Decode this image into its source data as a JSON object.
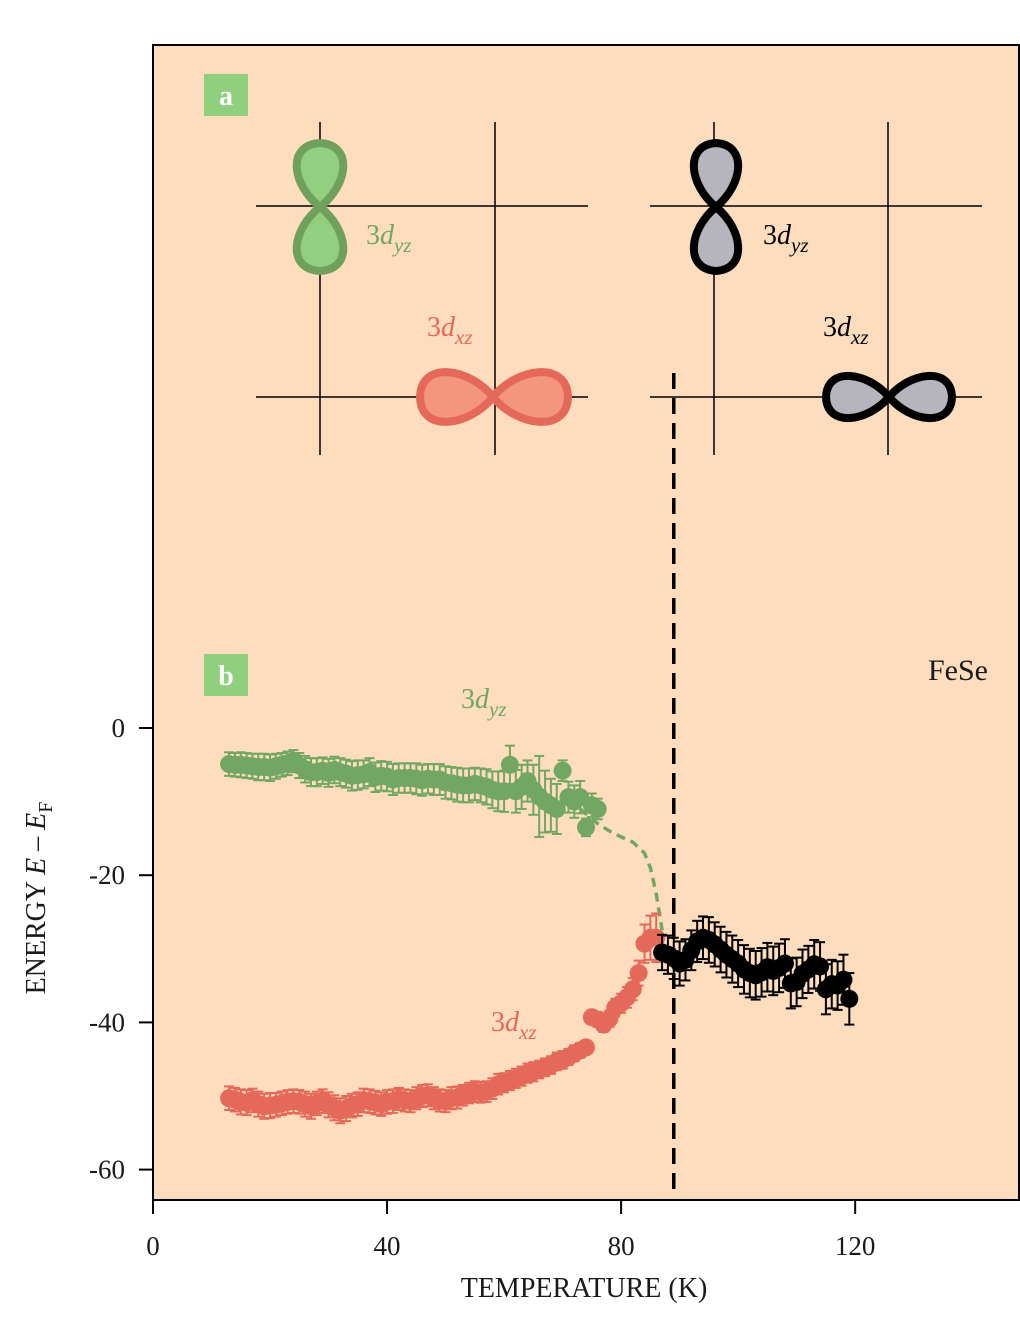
{
  "panel_a": {
    "label": "a",
    "label_color": "#8fcf7e",
    "left_diagram": {
      "yz_label": {
        "prefix": "3",
        "d": "d",
        "sub": "yz"
      },
      "xz_label": {
        "prefix": "3",
        "d": "d",
        "sub": "xz"
      },
      "yz_fill": "#93cf80",
      "yz_stroke": "#6fa05c",
      "xz_fill": "#f4967e",
      "xz_stroke": "#e4695a"
    },
    "right_diagram": {
      "yz_label": {
        "prefix": "3",
        "d": "d",
        "sub": "yz"
      },
      "xz_label": {
        "prefix": "3",
        "d": "d",
        "sub": "xz"
      },
      "fill": "#b6b5be",
      "stroke": "#000000"
    }
  },
  "panel_b": {
    "label": "b",
    "label_color": "#8fcf7e",
    "sample_label": "FeSe"
  },
  "colors": {
    "background": "#fdddbd",
    "green": "#72a763",
    "red": "#e5695b",
    "black": "#000000"
  },
  "chart_data": {
    "type": "scatter",
    "xlabel": "TEMPERATURE (K)",
    "ylabel": {
      "prefix": "ENERGY ",
      "e1": "E",
      "mid": " – ",
      "e2": "E",
      "sub": "F"
    },
    "xlim": [
      0,
      148
    ],
    "ylim": [
      -64,
      0
    ],
    "xticks": [
      0,
      40,
      80,
      120
    ],
    "yticks": [
      0,
      -20,
      -40,
      -60
    ],
    "tick_labels_x": [
      "0",
      "40",
      "80",
      "120"
    ],
    "tick_labels_y": [
      "0",
      "-20",
      "-40",
      "-60"
    ],
    "transition_temperature": 89,
    "series": [
      {
        "label": {
          "prefix": "3",
          "d": "d",
          "sub": "yz"
        },
        "color": "#72a763",
        "x": [
          13,
          14,
          15,
          16,
          17,
          18,
          19,
          20,
          21,
          22,
          23,
          24,
          25,
          26,
          27,
          28,
          29,
          30,
          31,
          32,
          33,
          34,
          35,
          36,
          37,
          38,
          39,
          40,
          41,
          42,
          43,
          44,
          45,
          46,
          47,
          48,
          49,
          50,
          51,
          52,
          53,
          54,
          55,
          56,
          57,
          58,
          59,
          60,
          61,
          62,
          63,
          64,
          65,
          66,
          67,
          68,
          69,
          70,
          71,
          72,
          73,
          74,
          75,
          76
        ],
        "y": [
          -4.9,
          -5.0,
          -5.0,
          -5.1,
          -5.2,
          -5.3,
          -5.3,
          -5.4,
          -5.2,
          -5.0,
          -4.8,
          -4.5,
          -5.1,
          -5.6,
          -6.0,
          -6.0,
          -5.8,
          -6.1,
          -5.7,
          -6.0,
          -6.2,
          -6.5,
          -6.4,
          -6.3,
          -6.0,
          -6.7,
          -6.5,
          -6.6,
          -7.0,
          -6.8,
          -6.8,
          -6.8,
          -6.9,
          -7.1,
          -6.9,
          -7.0,
          -7.0,
          -7.4,
          -7.5,
          -7.7,
          -7.8,
          -7.8,
          -7.6,
          -7.8,
          -8.0,
          -8.4,
          -8.6,
          -8.6,
          -5.0,
          -8.6,
          -8.0,
          -7.2,
          -8.4,
          -9.3,
          -10.0,
          -10.5,
          -11.0,
          -5.8,
          -9.4,
          -10.0,
          -9.4,
          -13.5,
          -10.5,
          -11.0
        ],
        "errors": [
          1.6,
          1.6,
          1.7,
          1.7,
          1.7,
          1.8,
          1.8,
          1.8,
          1.7,
          1.6,
          1.6,
          1.5,
          1.7,
          1.8,
          1.9,
          1.9,
          1.8,
          1.9,
          1.8,
          1.9,
          1.9,
          2.0,
          2.0,
          1.9,
          1.9,
          2.0,
          2.0,
          2.0,
          2.1,
          2.0,
          2.0,
          2.0,
          2.1,
          2.1,
          2.0,
          2.1,
          2.1,
          2.2,
          2.2,
          2.3,
          2.3,
          2.3,
          2.2,
          2.3,
          2.4,
          2.5,
          2.7,
          2.8,
          2.6,
          2.9,
          3.0,
          2.8,
          3.4,
          5.5,
          4.2,
          3.6,
          3.4,
          1.4,
          2.1,
          2.2,
          2.2,
          1.2,
          1.6,
          1.4
        ]
      },
      {
        "label": {
          "prefix": "3",
          "d": "d",
          "sub": "xz"
        },
        "color": "#e5695b",
        "x": [
          13,
          14,
          15,
          16,
          17,
          18,
          19,
          20,
          21,
          22,
          23,
          24,
          25,
          26,
          27,
          28,
          29,
          30,
          31,
          32,
          33,
          34,
          35,
          36,
          37,
          38,
          39,
          40,
          41,
          42,
          43,
          44,
          45,
          46,
          47,
          48,
          49,
          50,
          51,
          52,
          53,
          54,
          55,
          56,
          57,
          58,
          59,
          60,
          61,
          62,
          63,
          64,
          65,
          66,
          67,
          68,
          69,
          70,
          71,
          72,
          73,
          74,
          75,
          76,
          77,
          78,
          79,
          80,
          81,
          82,
          83,
          84,
          85,
          86
        ],
        "y": [
          -50.3,
          -50.5,
          -50.8,
          -50.9,
          -50.6,
          -51.1,
          -51.4,
          -51.3,
          -51.2,
          -51.0,
          -50.8,
          -50.7,
          -50.8,
          -51.1,
          -51.4,
          -51.0,
          -50.7,
          -51.2,
          -51.6,
          -52.0,
          -51.7,
          -51.3,
          -51.1,
          -50.6,
          -50.7,
          -50.9,
          -51.1,
          -50.8,
          -50.7,
          -50.4,
          -50.6,
          -50.7,
          -50.3,
          -50.0,
          -49.9,
          -50.3,
          -50.6,
          -50.7,
          -50.3,
          -50.2,
          -49.9,
          -49.6,
          -49.4,
          -49.5,
          -49.4,
          -49.0,
          -48.4,
          -48.2,
          -47.9,
          -47.6,
          -47.3,
          -46.9,
          -46.7,
          -46.4,
          -46.1,
          -45.8,
          -45.3,
          -45.1,
          -44.7,
          -44.2,
          -43.8,
          -43.4,
          -39.3,
          -39.6,
          -40.3,
          -39.5,
          -38.0,
          -37.4,
          -36.6,
          -35.5,
          -33.3,
          -29.3,
          -28.5,
          -28.5
        ],
        "errors": [
          1.6,
          1.6,
          1.7,
          1.7,
          1.6,
          1.7,
          1.7,
          1.7,
          1.6,
          1.6,
          1.6,
          1.6,
          1.6,
          1.7,
          1.7,
          1.6,
          1.6,
          1.7,
          1.7,
          1.7,
          1.7,
          1.6,
          1.6,
          1.6,
          1.6,
          1.6,
          1.6,
          1.6,
          1.6,
          1.5,
          1.5,
          1.5,
          1.5,
          1.5,
          1.5,
          1.5,
          1.5,
          1.5,
          1.5,
          1.5,
          1.4,
          1.4,
          1.4,
          1.4,
          1.4,
          1.4,
          1.4,
          1.3,
          1.3,
          1.3,
          1.3,
          1.3,
          1.3,
          1.2,
          1.2,
          1.2,
          1.2,
          1.2,
          1.1,
          1.1,
          1.0,
          0.9,
          0.9,
          1.0,
          1.0,
          1.1,
          1.2,
          1.3,
          1.4,
          1.5,
          1.7,
          2.6,
          3.0,
          3.3
        ]
      },
      {
        "label": null,
        "color": "#000000",
        "x": [
          87,
          88,
          89,
          90,
          91,
          92,
          93,
          94,
          95,
          96,
          97,
          98,
          99,
          100,
          101,
          102,
          103,
          104,
          105,
          106,
          107,
          108,
          109,
          110,
          111,
          112,
          113,
          114,
          115,
          116,
          117,
          118,
          119
        ],
        "y": [
          -30.5,
          -30.8,
          -31.3,
          -32.0,
          -31.5,
          -30.2,
          -29.0,
          -28.5,
          -28.8,
          -29.4,
          -30.1,
          -30.8,
          -31.4,
          -32.0,
          -32.8,
          -33.3,
          -33.6,
          -33.2,
          -32.5,
          -33.0,
          -32.6,
          -32.0,
          -34.7,
          -34.5,
          -33.4,
          -32.8,
          -32.1,
          -32.4,
          -35.5,
          -34.8,
          -35.0,
          -34.2,
          -36.8
        ],
        "errors": [
          2.4,
          2.6,
          2.8,
          3.0,
          2.8,
          2.7,
          2.8,
          2.9,
          3.1,
          3.0,
          3.1,
          3.1,
          3.2,
          3.2,
          3.3,
          3.3,
          3.3,
          3.3,
          3.3,
          3.3,
          3.3,
          3.3,
          3.4,
          3.3,
          3.3,
          3.2,
          3.3,
          3.3,
          3.4,
          3.3,
          3.3,
          3.4,
          3.5
        ]
      }
    ],
    "fit_curve": {
      "color": "#72a763",
      "x": [
        73,
        76,
        78,
        80,
        82,
        84,
        85,
        86,
        87
      ],
      "y": [
        -11.0,
        -13.0,
        -14.0,
        -14.8,
        -15.5,
        -17.0,
        -19.0,
        -22.5,
        -27.5
      ]
    }
  }
}
